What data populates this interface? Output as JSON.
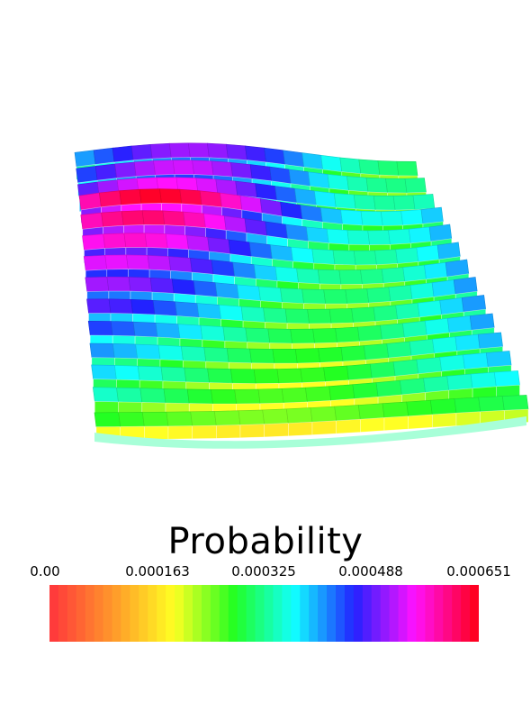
{
  "chart_data": {
    "type": "surface",
    "title": "",
    "colorbar": {
      "title": "Probability",
      "range": [
        0.0,
        0.000651
      ],
      "ticks": [
        "0.00",
        "0.000163",
        "0.000325",
        "0.000488",
        "0.000651"
      ],
      "colormap": [
        "#ff3b3b",
        "#ff9a2a",
        "#ffff22",
        "#22ff22",
        "#11ffff",
        "#2222ff",
        "#ff11ff",
        "#ff0022"
      ]
    },
    "grid_rows": 14,
    "grid_cols": 18,
    "row_peak_values": [
      0.00052,
      0.00054,
      0.00056,
      0.00065,
      0.00062,
      0.00058,
      0.00055,
      0.00052,
      0.00049,
      0.00046,
      0.00043,
      0.00041,
      0.00038,
      0.0003
    ],
    "row_min_values": [
      0.00031,
      0.00032,
      0.00033,
      0.00036,
      0.00035,
      0.00033,
      0.00032,
      0.00031,
      0.0003,
      0.00029,
      0.00028,
      0.00027,
      0.00026,
      0.00024
    ]
  }
}
